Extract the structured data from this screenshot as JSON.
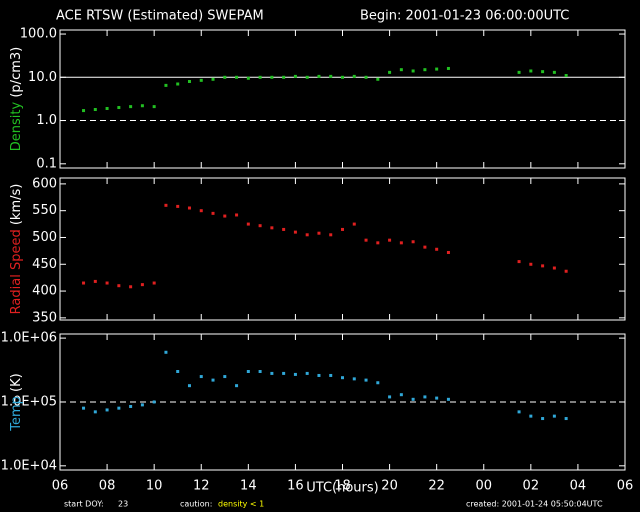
{
  "header": {
    "title": "ACE RTSW (Estimated) SWEPAM",
    "begin": "Begin: 2001-01-23 06:00:00UTC"
  },
  "footer": {
    "start_label": "start DOY:",
    "start_doy": "23",
    "caution_label": "caution:",
    "caution_text": "density < 1",
    "created": "created: 2001-01-24 05:50:04UTC"
  },
  "chart_data": [
    {
      "type": "scatter",
      "ylabel": "Density",
      "ylabel_unit": "(p/cm3)",
      "color": "#22c022",
      "log_y": true,
      "ylim": [
        0.08,
        124
      ],
      "xlim": [
        6,
        30
      ],
      "yticks": [
        {
          "value": 100,
          "label": "100.0"
        },
        {
          "value": 10,
          "label": "10.0"
        },
        {
          "value": 1,
          "label": "1.0"
        },
        {
          "value": 0.1,
          "label": "0.1"
        }
      ],
      "hlines": [
        {
          "value": 10,
          "style": "solid"
        },
        {
          "value": 1,
          "style": "dashed"
        }
      ],
      "x": [
        7,
        7.5,
        8,
        8.5,
        9,
        9.5,
        10,
        10.5,
        11,
        11.5,
        12,
        12.5,
        13,
        13.5,
        14,
        14.5,
        15,
        15.5,
        16,
        16.5,
        17,
        17.5,
        18,
        18.5,
        19,
        19.5,
        20,
        20.5,
        21,
        21.5,
        22,
        22.5,
        25.5,
        26,
        26.5,
        27,
        27.5
      ],
      "values": [
        1.7,
        1.8,
        1.9,
        2.0,
        2.1,
        2.2,
        2.1,
        6.5,
        7,
        8,
        8.5,
        9,
        10,
        10,
        9.5,
        10,
        10,
        10,
        10.5,
        10,
        10.5,
        10.5,
        10,
        10.5,
        10,
        9,
        13,
        15,
        14,
        15,
        15.5,
        16,
        13,
        14,
        13.5,
        13,
        11
      ]
    },
    {
      "type": "scatter",
      "ylabel": "Radial Speed",
      "ylabel_unit": "(km/s)",
      "color": "#e02020",
      "log_y": false,
      "ylim": [
        346,
        611
      ],
      "xlim": [
        6,
        30
      ],
      "yticks": [
        600,
        550,
        500,
        450,
        400,
        350
      ],
      "x": [
        7,
        7.5,
        8,
        8.5,
        9,
        9.5,
        10,
        10.5,
        11,
        11.5,
        12,
        12.5,
        13,
        13.5,
        14,
        14.5,
        15,
        15.5,
        16,
        16.5,
        17,
        17.5,
        18,
        18.5,
        19,
        19.5,
        20,
        20.5,
        21,
        21.5,
        22,
        22.5,
        25.5,
        26,
        26.5,
        27,
        27.5
      ],
      "values": [
        415,
        418,
        415,
        410,
        408,
        412,
        415,
        560,
        558,
        555,
        550,
        545,
        540,
        542,
        525,
        522,
        518,
        515,
        510,
        505,
        508,
        505,
        515,
        525,
        495,
        490,
        495,
        490,
        492,
        482,
        478,
        472,
        455,
        450,
        447,
        443,
        437
      ]
    },
    {
      "type": "scatter",
      "ylabel": "Temp",
      "ylabel_unit": "(K)",
      "color": "#30a8d8",
      "log_y": true,
      "ylim": [
        8600,
        1160000
      ],
      "xlim": [
        6,
        30
      ],
      "yticks": [
        {
          "value": 1000000,
          "label": "1.0E+06"
        },
        {
          "value": 100000,
          "label": "1.0E+05"
        },
        {
          "value": 10000,
          "label": "1.0E+04"
        }
      ],
      "hlines": [
        {
          "value": 100000,
          "style": "dashed"
        }
      ],
      "xlabel": "UTC(hours)",
      "xticks": [
        {
          "value": 6,
          "label": "06"
        },
        {
          "value": 8,
          "label": "08"
        },
        10,
        12,
        14,
        16,
        18,
        20,
        22,
        {
          "value": 24,
          "label": "00"
        },
        {
          "value": 26,
          "label": "02"
        },
        {
          "value": 28,
          "label": "04"
        },
        {
          "value": 30,
          "label": "06"
        }
      ],
      "x": [
        7,
        7.5,
        8,
        8.5,
        9,
        9.5,
        10,
        10.5,
        11,
        11.5,
        12,
        12.5,
        13,
        13.5,
        14,
        14.5,
        15,
        15.5,
        16,
        16.5,
        17,
        17.5,
        18,
        18.5,
        19,
        19.5,
        20,
        20.5,
        21,
        21.5,
        22,
        22.5,
        25.5,
        26,
        26.5,
        27,
        27.5
      ],
      "values": [
        80000,
        70000,
        75000,
        80000,
        85000,
        90000,
        100000,
        600000,
        300000,
        180000,
        250000,
        220000,
        250000,
        180000,
        300000,
        300000,
        280000,
        280000,
        270000,
        280000,
        260000,
        260000,
        240000,
        230000,
        220000,
        200000,
        120000,
        130000,
        110000,
        120000,
        115000,
        110000,
        70000,
        60000,
        55000,
        60000,
        55000
      ]
    }
  ]
}
